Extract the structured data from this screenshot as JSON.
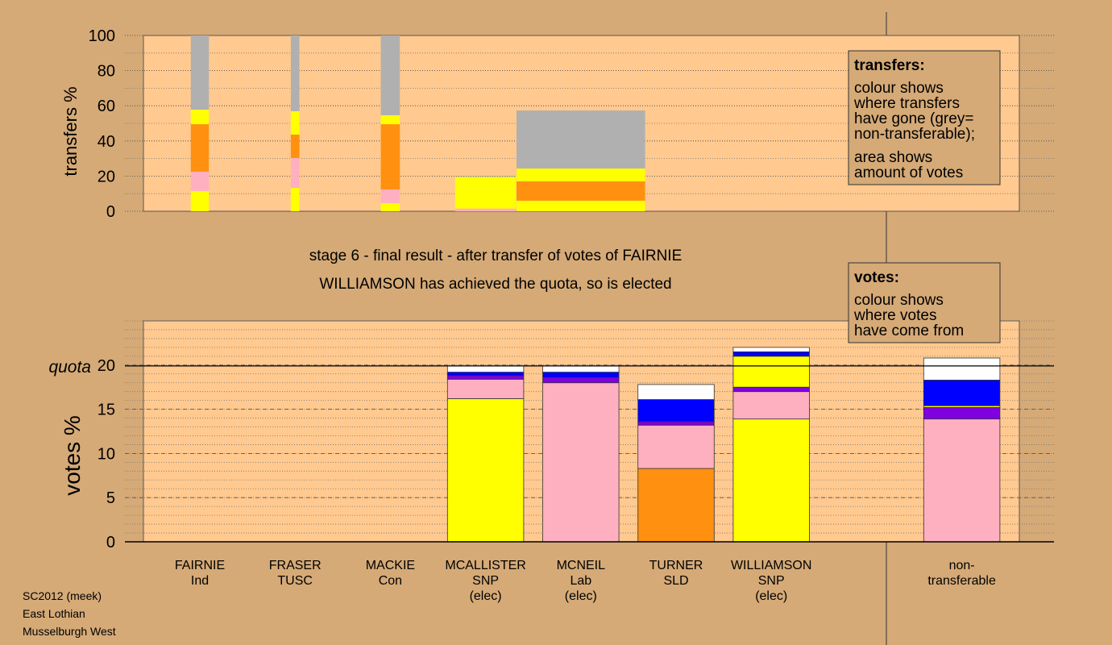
{
  "chart_data": [
    {
      "type": "bar",
      "stacked": true,
      "ylabel": "transfers %",
      "ylim": [
        0,
        100
      ],
      "yticks": [
        0,
        20,
        40,
        60,
        80,
        100
      ],
      "widths": [
        0.19,
        0.09,
        0.2,
        0.64,
        1.35,
        null,
        null,
        null,
        null
      ],
      "series": [
        {
          "color": "#ffff00",
          "values": [
            11.5,
            13.3,
            4.6,
            0,
            6.0,
            null,
            null,
            null,
            null
          ]
        },
        {
          "color": "#ffb0c0",
          "values": [
            11,
            17,
            7.8,
            1.5,
            0,
            null,
            null,
            null,
            null
          ]
        },
        {
          "color": "#ff9010",
          "values": [
            27,
            13.3,
            37.1,
            0,
            11.0,
            null,
            null,
            null,
            null
          ]
        },
        {
          "color": "#ffff00",
          "values": [
            8.3,
            13.3,
            5.1,
            18.0,
            7.3,
            null,
            null,
            null,
            null
          ]
        },
        {
          "color": "#b0b0b0",
          "values": [
            42.2,
            43.1,
            45.4,
            0.4,
            33.0,
            null,
            null,
            null,
            null
          ]
        }
      ],
      "note_title": "transfers:",
      "note_lines": [
        [
          "colour shows",
          "where transfers",
          "have gone (grey=",
          "non-transferable);"
        ],
        [
          "area shows",
          "amount of votes"
        ]
      ]
    },
    {
      "type": "bar",
      "stacked": true,
      "title": "stage 6 - final result - after transfer of votes of FAIRNIE",
      "subtitle": "WILLIAMSON has achieved the quota, so is elected",
      "ylabel": "votes %",
      "categories": [
        "FAIRNIE\nInd",
        "FRASER\nTUSC",
        "MACKIE\nCon",
        "MCALLISTER\nSNP\n(elec)",
        "MCNEIL\nLab\n(elec)",
        "TURNER\nSLD",
        "WILLIAMSON\nSNP\n(elec)",
        null,
        "non-\ntransferable"
      ],
      "ylim": [
        0,
        25
      ],
      "yticks": [
        0,
        5,
        10,
        15,
        20
      ],
      "quota": {
        "value": 19.9,
        "label": "quota"
      },
      "series": [
        {
          "color": "#ffff00",
          "values": [
            0,
            0,
            0,
            16.2,
            0,
            0,
            13.9,
            null,
            0
          ]
        },
        {
          "color": "#ff9010",
          "values": [
            0,
            0,
            0,
            0,
            0,
            8.3,
            0,
            null,
            0
          ]
        },
        {
          "color": "#ffb0c0",
          "values": [
            0,
            0,
            0,
            2.2,
            18.0,
            4.9,
            3.1,
            null,
            13.9
          ]
        },
        {
          "color": "#8000e0",
          "values": [
            0,
            0,
            0,
            0.4,
            0.6,
            0.4,
            0.5,
            null,
            1.3
          ]
        },
        {
          "color": "#ffff00",
          "values": [
            0,
            0,
            0,
            0,
            0,
            0,
            3.5,
            null,
            0.2
          ]
        },
        {
          "color": "#0000ff",
          "values": [
            0,
            0,
            0,
            0.4,
            0.6,
            2.5,
            0.5,
            null,
            2.9
          ]
        },
        {
          "color": "#ffffff",
          "values": [
            0,
            0,
            0,
            0.7,
            0.7,
            1.7,
            0.5,
            null,
            2.5
          ]
        }
      ],
      "note_title": "votes:",
      "note_lines": [
        [
          "colour shows",
          "where votes",
          "have come from"
        ]
      ]
    }
  ],
  "footer": [
    "SC2012 (meek)",
    "East Lothian",
    "Musselburgh West"
  ]
}
